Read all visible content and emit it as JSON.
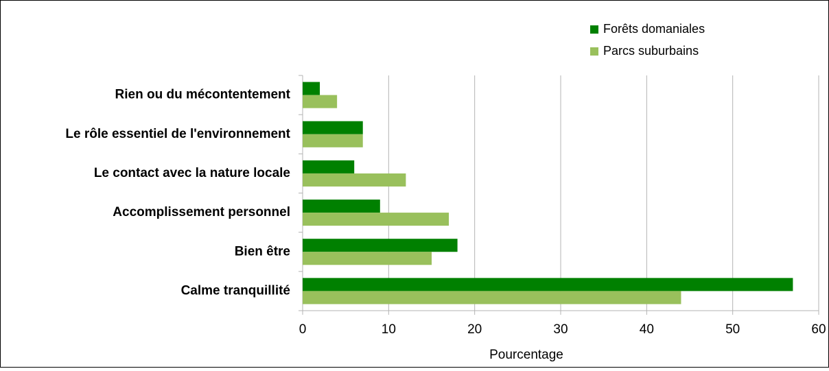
{
  "chart_data": {
    "type": "barh",
    "categories": [
      "Rien ou du mécontentement",
      "Le rôle essentiel de l'environnement",
      "Le contact avec la nature locale",
      "Accomplissement personnel",
      "Bien être",
      "Calme tranquillité"
    ],
    "series": [
      {
        "name": "Forêts domaniales",
        "color": "#008000",
        "values": [
          2,
          7,
          6,
          9,
          18,
          57
        ]
      },
      {
        "name": "Parcs suburbains",
        "color": "#99c05c",
        "values": [
          4,
          7,
          12,
          17,
          15,
          44
        ]
      }
    ],
    "xlabel": "Pourcentage",
    "xlim": [
      0,
      60
    ],
    "xticks": [
      0,
      10,
      20,
      30,
      40,
      50,
      60
    ],
    "grid": true,
    "legend": "top-right"
  }
}
